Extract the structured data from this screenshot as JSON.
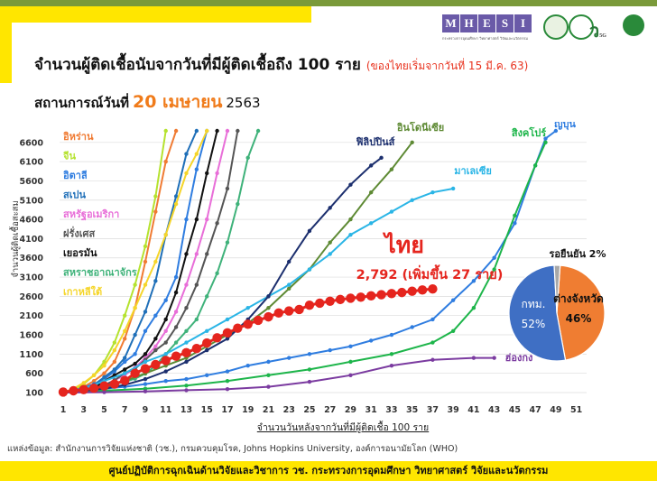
{
  "header": {
    "title": "จำนวนผู้ติดเชื้อนับจากวันที่มีผู้ติดเชื้อถึง 100 ราย",
    "title_note": "(ของไทยเริ่มจากวันที่ 15 มี.ค. 63)",
    "subtitle_prefix": "สถานการณ์วันที่",
    "subtitle_date": "20 เมษายน",
    "subtitle_year": "2563"
  },
  "logos": {
    "mhesi_letters": [
      "M",
      "H",
      "E",
      "S",
      "I"
    ],
    "mhesi_caption": "กระทรวงการอุดมศึกษา วิทยาศาสตร์ วิจัยและนวัตกรรม",
    "mhesi_caption_en": "Ministry of Higher Education, Science, Research and Innovation",
    "fiveg": "5G",
    "dept_caption": "กรมควบคุมโรค",
    "colors": {
      "mhesi": "#6a5aa8",
      "green": "#2a8a3a"
    }
  },
  "chart_data": {
    "type": "line",
    "xlabel": "จำนวนวันหลังจากวันที่มีผู้ติดเชื้อ 100 ราย",
    "ylabel": "จำนวนผู้ติดเชื้อสะสม",
    "xlim": [
      1,
      52
    ],
    "ylim": [
      100,
      6900
    ],
    "xticks": [
      "1",
      "3",
      "5",
      "7",
      "9",
      "11",
      "13",
      "15",
      "17",
      "19",
      "21",
      "23",
      "25",
      "27",
      "29",
      "31",
      "33",
      "35",
      "37",
      "39",
      "41",
      "43",
      "45",
      "47",
      "49",
      "51"
    ],
    "yticks": [
      "100",
      "600",
      "1100",
      "1600",
      "2100",
      "2600",
      "3100",
      "3600",
      "4100",
      "4600",
      "5100",
      "5600",
      "6100",
      "6600"
    ],
    "legend_position": "top-left",
    "legend": [
      {
        "name": "อิหร่าน",
        "color": "#f07b33"
      },
      {
        "name": "จีน",
        "color": "#b5e22f"
      },
      {
        "name": "อิตาลี",
        "color": "#2f7de0"
      },
      {
        "name": "สเปน",
        "color": "#1f6fb8"
      },
      {
        "name": "สหรัฐอเมริกา",
        "color": "#e86ed8"
      },
      {
        "name": "ฝรั่งเศส",
        "color": "#555555"
      },
      {
        "name": "เยอรมัน",
        "color": "#111111"
      },
      {
        "name": "สหราชอาณาจักร",
        "color": "#3fb27a"
      },
      {
        "name": "เกาหลีใต้",
        "color": "#f5d52a"
      }
    ],
    "series": [
      {
        "name": "อิหร่าน",
        "color": "#f07b33",
        "x": [
          1,
          2,
          3,
          4,
          5,
          6,
          7,
          8,
          9,
          10,
          11,
          12
        ],
        "y": [
          100,
          150,
          250,
          400,
          600,
          900,
          1500,
          2300,
          3500,
          4800,
          6100,
          6900
        ]
      },
      {
        "name": "จีน",
        "color": "#b5e22f",
        "x": [
          1,
          2,
          3,
          4,
          5,
          6,
          7,
          8,
          9,
          10,
          11
        ],
        "y": [
          100,
          180,
          320,
          550,
          900,
          1400,
          2100,
          2900,
          3900,
          5200,
          6900
        ]
      },
      {
        "name": "อิตาลี",
        "color": "#2f7de0",
        "x": [
          1,
          2,
          3,
          4,
          5,
          6,
          7,
          8,
          9,
          10,
          11,
          12,
          13,
          14,
          15
        ],
        "y": [
          100,
          150,
          230,
          320,
          450,
          650,
          900,
          1100,
          1700,
          2100,
          2500,
          3100,
          4600,
          5900,
          6900
        ]
      },
      {
        "name": "สเปน",
        "color": "#1f6fb8",
        "x": [
          1,
          2,
          3,
          4,
          5,
          6,
          7,
          8,
          9,
          10,
          11,
          12,
          13,
          14
        ],
        "y": [
          100,
          140,
          200,
          300,
          500,
          700,
          1000,
          1600,
          2200,
          3000,
          4200,
          5200,
          6300,
          6900
        ]
      },
      {
        "name": "สหรัฐอเมริกา",
        "color": "#e86ed8",
        "x": [
          1,
          2,
          3,
          4,
          5,
          6,
          7,
          8,
          9,
          10,
          11,
          12,
          13,
          14,
          15,
          16,
          17
        ],
        "y": [
          100,
          120,
          160,
          220,
          300,
          420,
          550,
          750,
          1000,
          1300,
          1700,
          2200,
          2900,
          3700,
          4600,
          5800,
          6900
        ]
      },
      {
        "name": "ฝรั่งเศส",
        "color": "#555555",
        "x": [
          1,
          2,
          3,
          4,
          5,
          6,
          7,
          8,
          9,
          10,
          11,
          12,
          13,
          14,
          15,
          16,
          17,
          18
        ],
        "y": [
          100,
          130,
          190,
          210,
          290,
          420,
          610,
          720,
          950,
          1200,
          1400,
          1800,
          2300,
          2900,
          3700,
          4500,
          5400,
          6900
        ]
      },
      {
        "name": "เยอรมัน",
        "color": "#111111",
        "x": [
          1,
          2,
          3,
          4,
          5,
          6,
          7,
          8,
          9,
          10,
          11,
          12,
          13,
          14,
          15,
          16
        ],
        "y": [
          100,
          130,
          160,
          210,
          400,
          550,
          700,
          850,
          1100,
          1500,
          2000,
          2700,
          3700,
          4600,
          5800,
          6900
        ]
      },
      {
        "name": "สหราชอาณาจักร",
        "color": "#3fb27a",
        "x": [
          1,
          2,
          3,
          4,
          5,
          6,
          7,
          8,
          9,
          10,
          11,
          12,
          13,
          14,
          15,
          16,
          17,
          18,
          19,
          20
        ],
        "y": [
          100,
          120,
          160,
          210,
          270,
          320,
          380,
          460,
          590,
          800,
          1100,
          1400,
          1700,
          2000,
          2600,
          3200,
          4000,
          5000,
          6200,
          6900
        ]
      },
      {
        "name": "เกาหลีใต้",
        "color": "#f5d52a",
        "x": [
          1,
          2,
          3,
          4,
          5,
          6,
          7,
          8,
          9,
          10,
          11,
          12,
          13,
          14,
          15
        ],
        "y": [
          100,
          200,
          350,
          550,
          800,
          1200,
          1700,
          2300,
          2900,
          3500,
          4200,
          5000,
          5800,
          6300,
          6900
        ]
      },
      {
        "name": "ญี่ปุ่น",
        "color": "#2f7de0",
        "x": [
          1,
          3,
          5,
          7,
          9,
          11,
          13,
          15,
          17,
          19,
          21,
          23,
          25,
          27,
          29,
          31,
          33,
          35,
          37,
          39,
          41,
          43,
          45,
          47,
          48,
          49
        ],
        "y": [
          100,
          150,
          200,
          250,
          320,
          400,
          450,
          550,
          650,
          800,
          900,
          1000,
          1100,
          1200,
          1300,
          1450,
          1600,
          1800,
          2000,
          2500,
          3000,
          3600,
          4500,
          6000,
          6700,
          6900
        ]
      },
      {
        "name": "สิงคโปร์",
        "color": "#1db54a",
        "x": [
          1,
          5,
          9,
          13,
          17,
          21,
          25,
          29,
          33,
          37,
          39,
          41,
          43,
          45,
          47,
          48
        ],
        "y": [
          100,
          150,
          200,
          280,
          400,
          550,
          700,
          900,
          1100,
          1400,
          1700,
          2300,
          3300,
          4700,
          6000,
          6600
        ]
      },
      {
        "name": "อินโดนีเซีย",
        "color": "#5e8a34",
        "x": [
          1,
          3,
          5,
          7,
          9,
          11,
          13,
          15,
          17,
          19,
          21,
          23,
          25,
          27,
          29,
          31,
          33,
          35
        ],
        "y": [
          100,
          150,
          230,
          400,
          600,
          800,
          1000,
          1300,
          1600,
          1900,
          2300,
          2800,
          3300,
          4000,
          4600,
          5300,
          5900,
          6600
        ]
      },
      {
        "name": "มาเลเซีย",
        "color": "#2ab5e6",
        "x": [
          1,
          3,
          5,
          7,
          9,
          11,
          13,
          15,
          17,
          19,
          21,
          23,
          25,
          27,
          29,
          31,
          33,
          35,
          37,
          39
        ],
        "y": [
          100,
          200,
          400,
          600,
          900,
          1100,
          1400,
          1700,
          2000,
          2300,
          2600,
          2900,
          3300,
          3700,
          4200,
          4500,
          4800,
          5100,
          5300,
          5400
        ]
      },
      {
        "name": "ฟิลิปปินส์",
        "color": "#1c2f6e",
        "x": [
          1,
          3,
          5,
          7,
          9,
          11,
          13,
          15,
          17,
          19,
          21,
          23,
          25,
          27,
          29,
          31,
          32
        ],
        "y": [
          100,
          150,
          200,
          300,
          450,
          650,
          900,
          1200,
          1500,
          2000,
          2600,
          3500,
          4300,
          4900,
          5500,
          6000,
          6200
        ]
      },
      {
        "name": "ไทย",
        "color": "#e5251e",
        "x": [
          1,
          2,
          3,
          4,
          5,
          6,
          7,
          8,
          9,
          10,
          11,
          12,
          13,
          14,
          15,
          16,
          17,
          18,
          19,
          20,
          21,
          22,
          23,
          24,
          25,
          26,
          27,
          28,
          29,
          30,
          31,
          32,
          33,
          34,
          35,
          36,
          37
        ],
        "y": [
          114,
          147,
          177,
          212,
          272,
          322,
          411,
          599,
          721,
          827,
          934,
          1045,
          1136,
          1245,
          1388,
          1524,
          1651,
          1771,
          1875,
          1978,
          2067,
          2169,
          2220,
          2258,
          2369,
          2423,
          2473,
          2518,
          2551,
          2579,
          2613,
          2643,
          2672,
          2700,
          2733,
          2765,
          2792
        ]
      },
      {
        "name": "ฮ่องกง",
        "color": "#7b3ba0",
        "x": [
          1,
          5,
          9,
          13,
          17,
          21,
          25,
          29,
          33,
          37,
          41,
          43
        ],
        "y": [
          100,
          110,
          130,
          160,
          190,
          250,
          380,
          550,
          800,
          950,
          1000,
          1000
        ]
      }
    ],
    "annotations": [
      {
        "text": "ฟิลิปปินส์",
        "color": "#1c2f6e"
      },
      {
        "text": "อินโดนีเซีย",
        "color": "#5e8a34"
      },
      {
        "text": "สิงคโปร์",
        "color": "#1db54a"
      },
      {
        "text": "ญี่ปุ่น",
        "color": "#2f7de0"
      },
      {
        "text": "มาเลเซีย",
        "color": "#2ab5e6"
      },
      {
        "text": "ไทย",
        "color": "#e5251e"
      },
      {
        "text": "2,792 (เพิ่มขึ้น 27 ราย)",
        "color": "#e5251e"
      },
      {
        "text": "ฮ่องกง",
        "color": "#7b3ba0"
      }
    ],
    "pie": {
      "type": "pie",
      "slices": [
        {
          "label": "กทม.",
          "value": 52,
          "display": "52%",
          "color": "#3f6fc4"
        },
        {
          "label": "ต่างจังหวัด",
          "value": 46,
          "display": "46%",
          "color": "#ef7d32"
        },
        {
          "label": "รอยืนยัน",
          "value": 2,
          "display": "2%",
          "color": "#a8a8a8"
        }
      ],
      "outside_label": "รอยืนยัน 2%"
    }
  },
  "source": "แหล่งข้อมูล: สำนักงานการวิจัยแห่งชาติ (วช.), กรมควบคุมโรค, Johns Hopkins University, องค์การอนามัยโลก (WHO)",
  "footer": "ศูนย์ปฏิบัติการฉุกเฉินด้านวิจัยและวิชาการ   วช.   กระทรวงการอุดมศึกษา วิทยาศาสตร์ วิจัยและนวัตกรรม"
}
